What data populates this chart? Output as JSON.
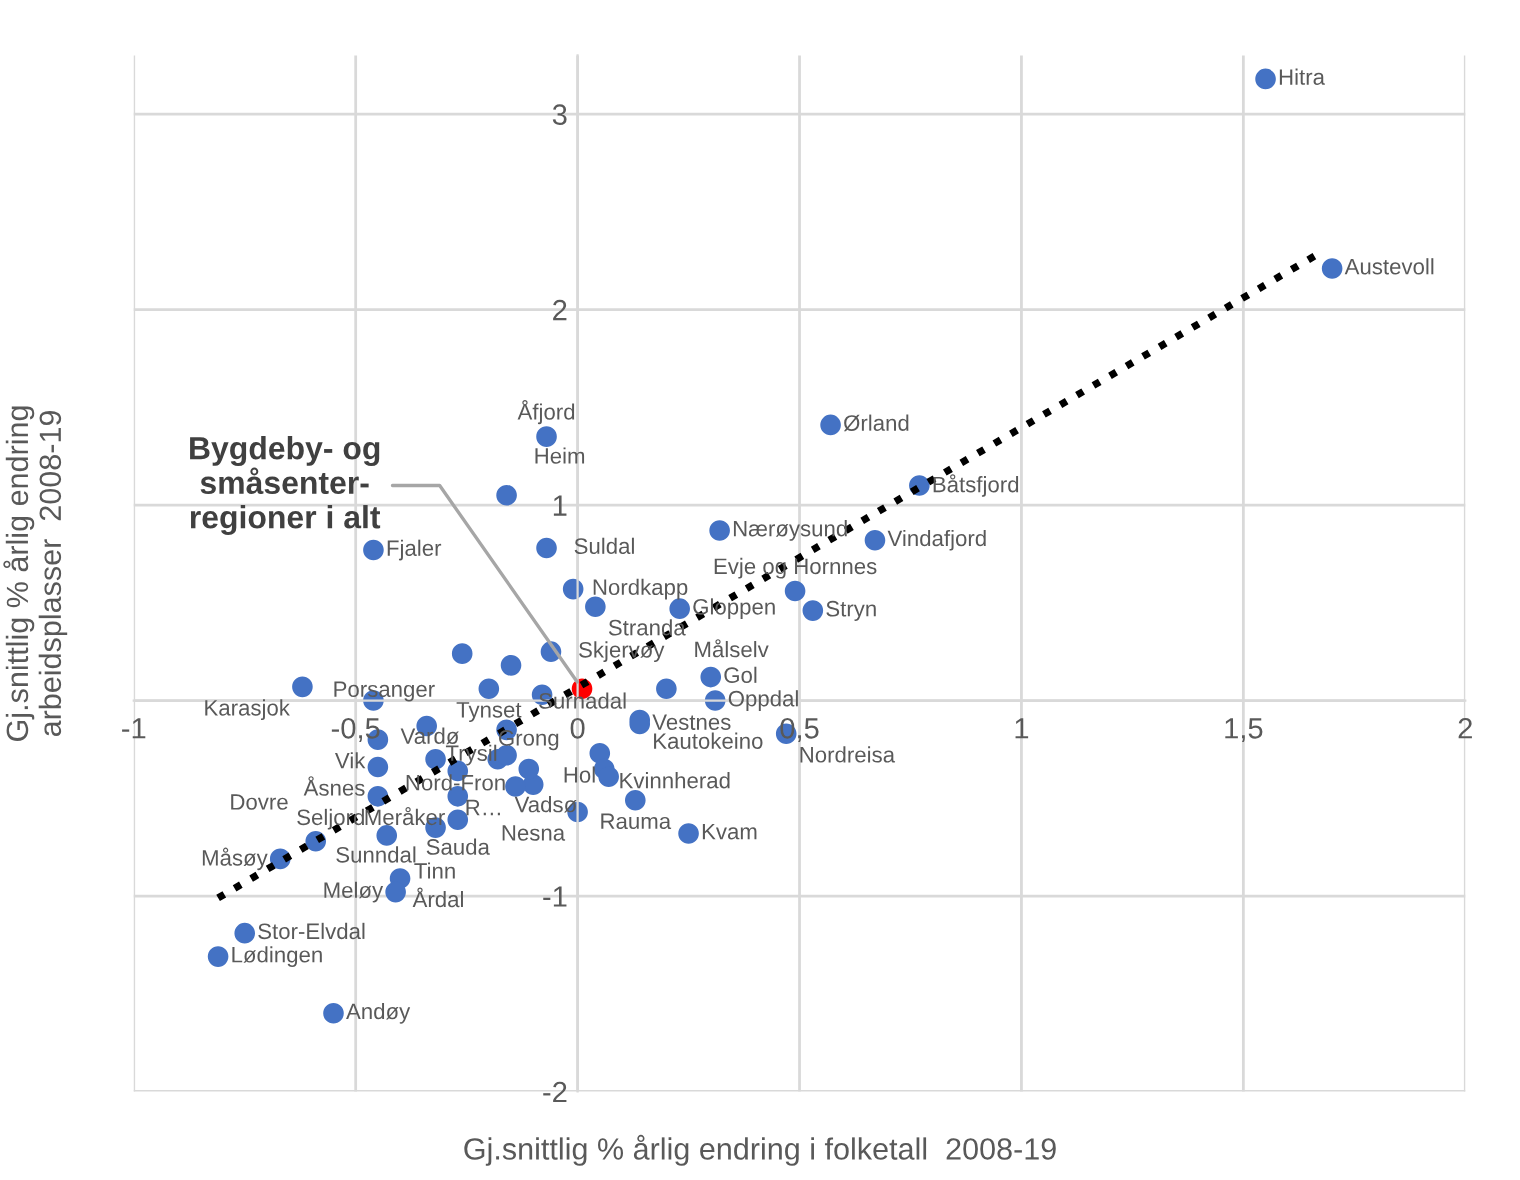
{
  "chart_data": {
    "type": "scatter",
    "xlabel": "Gj.snittlig % årlig endring i folketall  2008-19",
    "ylabel": "Gj.snittlig % årlig endring\narbeidsplasser  2008-19",
    "xlim": [
      -1,
      2
    ],
    "ylim": [
      -2,
      3.3
    ],
    "xticks": [
      -1,
      {
        "value": -0.5,
        "label": "-0,5"
      },
      0,
      {
        "value": 0.5,
        "label": "0,5"
      },
      1,
      {
        "value": 1.5,
        "label": "1,5"
      },
      2
    ],
    "yticks": [
      -2,
      -1,
      {
        "value": 0,
        "label": null
      },
      1,
      2,
      3
    ],
    "grid": true,
    "legend": false,
    "series": [
      {
        "color": "#4472c4",
        "marker": "circle",
        "x": [
          1.55,
          1.7,
          0.57,
          0.77,
          0.67,
          0.32,
          0.49,
          0.53,
          0.23,
          -0.07,
          -0.16,
          -0.07,
          -0.46,
          -0.01,
          0.04,
          -0.06,
          -0.26,
          -0.15,
          -0.62,
          -0.2,
          -0.46,
          0.2,
          0.3,
          0.31,
          0.14,
          0.14,
          0.47,
          0.05,
          0.06,
          0.07,
          -0.1,
          0.13,
          0.0,
          0.25,
          -0.14,
          -0.45,
          -0.34,
          -0.45,
          -0.45,
          -0.11,
          -0.27,
          -0.27,
          -0.32,
          -0.43,
          -0.59,
          -0.67,
          -0.4,
          -0.41,
          -0.75,
          -0.81,
          -0.55,
          -0.32,
          -0.27,
          -0.18,
          -0.16,
          -0.16,
          -0.08
        ],
        "values": [
          3.18,
          2.21,
          1.41,
          1.1,
          0.82,
          0.87,
          0.56,
          0.46,
          0.47,
          1.35,
          1.05,
          0.78,
          0.77,
          0.57,
          0.48,
          0.25,
          0.24,
          0.18,
          0.07,
          0.06,
          0.0,
          0.06,
          0.12,
          0.0,
          -0.1,
          -0.12,
          -0.17,
          -0.27,
          -0.35,
          -0.39,
          -0.43,
          -0.51,
          -0.57,
          -0.68,
          -0.44,
          -0.2,
          -0.13,
          -0.34,
          -0.49,
          -0.35,
          -0.49,
          -0.61,
          -0.65,
          -0.69,
          -0.72,
          -0.81,
          -0.91,
          -0.98,
          -1.19,
          -1.31,
          -1.6,
          -0.3,
          -0.36,
          -0.3,
          -0.28,
          -0.15,
          0.03
        ],
        "value_labels": [
          "Hitra",
          "Austevoll",
          "Ørland",
          "Båtsfjord",
          "Vindafjord",
          "Nærøysund",
          "Evje og Hornnes",
          "Stryn",
          "Gloppen",
          "Åfjord",
          "Heim",
          "Suldal",
          "Fjaler",
          "Nordkapp",
          "Stranda",
          "Skjervøy",
          "Porsanger",
          "Surnadal",
          "Karasjok",
          "Tynset",
          "Vardø",
          "Målselv",
          "Gol",
          "Oppdal",
          "Kautokeino",
          "Vestnes",
          "Nordreisa",
          "Kvinnherad",
          "Vadsø",
          "Hol",
          "Nord-Fron",
          "Rauma",
          "Nesna",
          "Kvam",
          "R…",
          "Vik",
          "Trysil",
          "Åsnes",
          "Seljord",
          "Grong",
          "Meråker",
          "Sauda",
          "Sunndal",
          "Tinn",
          "Dovre",
          "Måsøy",
          "Årdal",
          "Meløy",
          "Stor-Elvdal",
          "Lødingen",
          "Andøy",
          null,
          null,
          null,
          null,
          null,
          null
        ]
      },
      {
        "type": "line",
        "color": "#000000",
        "line_style": "dotted",
        "marker": "none",
        "x": [
          -0.81,
          1.68
        ],
        "values": [
          -1.01,
          2.3
        ]
      },
      {
        "type": "scatter",
        "color": "#ff0000",
        "marker": "circle",
        "x": [
          0.01
        ],
        "values": [
          0.06
        ],
        "name": "Bygdeby- og\nsmåsenter-\nregioner i alt"
      }
    ]
  }
}
